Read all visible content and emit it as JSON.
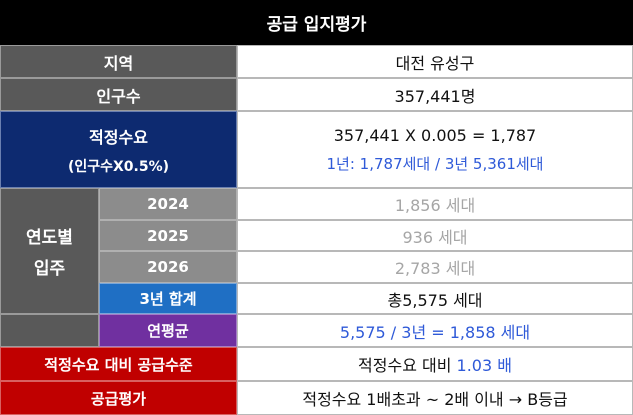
{
  "title": "공급 입지평가",
  "region": {
    "label": "지역",
    "value": "대전 유성구"
  },
  "population": {
    "label": "인구수",
    "value": "357,441명"
  },
  "demand": {
    "label": "적정수요",
    "sublabel": "(인구수X0.5%)",
    "formula": "357,441 X 0.005 = 1,787",
    "detail": "1년: 1,787세대 / 3년 5,361세대"
  },
  "yearly": {
    "label_line1": "연도별",
    "label_line2": "입주",
    "rows": [
      {
        "year": "2024",
        "value": "1,856 세대"
      },
      {
        "year": "2025",
        "value": "936 세대"
      },
      {
        "year": "2026",
        "value": "2,783 세대"
      }
    ],
    "total": {
      "label": "3년 합계",
      "value": "총5,575 세대"
    },
    "average": {
      "label": "연평균",
      "value": "5,575 / 3년 = 1,858 세대"
    }
  },
  "supply_level": {
    "label": "적정수요 대비 공급수준",
    "value_prefix": "적정수요 대비 ",
    "value_highlight": "1.03 배"
  },
  "evaluation": {
    "label": "공급평가",
    "value": "적정수요 1배초과 ~ 2배 이내 → B등급"
  },
  "colors": {
    "title_bg": "#000000",
    "gray_header": "#595959",
    "light_gray_header": "#8c8c8c",
    "navy_header": "#0d2a70",
    "blue_header": "#1f6fc4",
    "purple_header": "#7030a0",
    "red_header": "#c00000",
    "blue_text": "#2f5ad8"
  }
}
